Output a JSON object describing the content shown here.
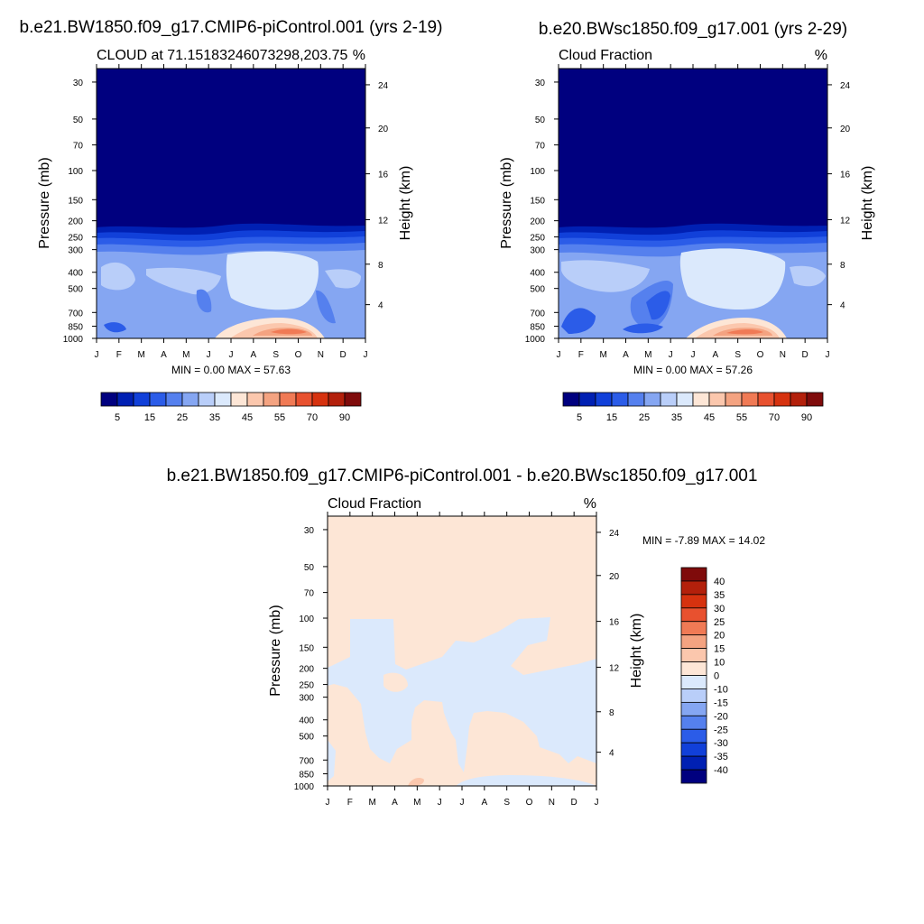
{
  "chart_data": [
    {
      "type": "heatmap",
      "title": "b.e21.BW1850.f09_g17.CMIP6-piControl.001 (yrs 2-19)",
      "subtitle_left": "CLOUD at 71.15183246073298,203.75",
      "subtitle_right": "%",
      "ylabel": "Pressure (mb)",
      "ylabel_right": "Height (km)",
      "x_ticks": [
        "J",
        "F",
        "M",
        "A",
        "M",
        "J",
        "J",
        "A",
        "S",
        "O",
        "N",
        "D",
        "J"
      ],
      "y_ticks": [
        "30",
        "50",
        "70",
        "100",
        "150",
        "200",
        "250",
        "300",
        "400",
        "500",
        "700",
        "850",
        "1000"
      ],
      "y_ticks_right": [
        "24",
        "20",
        "16",
        "12",
        "8",
        "4"
      ],
      "stats": "MIN =   0.00 MAX =  57.63",
      "colorbar_labels": [
        "5",
        "15",
        "25",
        "35",
        "45",
        "55",
        "70",
        "90"
      ],
      "colorbar_colors": [
        "#00007f",
        "#0020b3",
        "#1140d9",
        "#2b5ce8",
        "#5580ee",
        "#85a6f2",
        "#b9cef9",
        "#dbe9fc",
        "#fde6d6",
        "#fbc7ad",
        "#f4a381",
        "#f07a55",
        "#e8512f",
        "#d6320f",
        "#b3200b",
        "#7f0b0b"
      ],
      "max": 57.63,
      "min": 0.0
    },
    {
      "type": "heatmap",
      "title": "b.e20.BWsc1850.f09_g17.001 (yrs 2-29)",
      "subtitle_left": "Cloud Fraction",
      "subtitle_right": "%",
      "ylabel": "Pressure (mb)",
      "ylabel_right": "Height (km)",
      "x_ticks": [
        "J",
        "F",
        "M",
        "A",
        "M",
        "J",
        "J",
        "A",
        "S",
        "O",
        "N",
        "D",
        "J"
      ],
      "y_ticks": [
        "30",
        "50",
        "70",
        "100",
        "150",
        "200",
        "250",
        "300",
        "400",
        "500",
        "700",
        "850",
        "1000"
      ],
      "y_ticks_right": [
        "24",
        "20",
        "16",
        "12",
        "8",
        "4"
      ],
      "stats": "MIN =   0.00 MAX =  57.26",
      "colorbar_labels": [
        "5",
        "15",
        "25",
        "35",
        "45",
        "55",
        "70",
        "90"
      ],
      "max": 57.26,
      "min": 0.0
    },
    {
      "type": "heatmap",
      "title": "b.e21.BW1850.f09_g17.CMIP6-piControl.001 - b.e20.BWsc1850.f09_g17.001",
      "subtitle_left": "Cloud Fraction",
      "subtitle_right": "%",
      "ylabel": "Pressure (mb)",
      "ylabel_right": "Height (km)",
      "x_ticks": [
        "J",
        "F",
        "M",
        "A",
        "M",
        "J",
        "J",
        "A",
        "S",
        "O",
        "N",
        "D",
        "J"
      ],
      "y_ticks": [
        "30",
        "50",
        "70",
        "100",
        "150",
        "200",
        "250",
        "300",
        "400",
        "500",
        "700",
        "850",
        "1000"
      ],
      "y_ticks_right": [
        "24",
        "20",
        "16",
        "12",
        "8",
        "4"
      ],
      "stats": "MIN =  -7.89 MAX =  14.02",
      "colorbar_labels": [
        "40",
        "35",
        "30",
        "25",
        "20",
        "15",
        "10",
        "0",
        "-10",
        "-15",
        "-20",
        "-25",
        "-30",
        "-35",
        "-40"
      ],
      "colorbar_colors": [
        "#7f0b0b",
        "#b3200b",
        "#d6320f",
        "#e8512f",
        "#f07a55",
        "#f4a381",
        "#fbc7ad",
        "#fde6d6",
        "#dbe9fc",
        "#b9cef9",
        "#85a6f2",
        "#5580ee",
        "#2b5ce8",
        "#1140d9",
        "#0020b3",
        "#00007f"
      ],
      "max": 14.02,
      "min": -7.89
    }
  ]
}
